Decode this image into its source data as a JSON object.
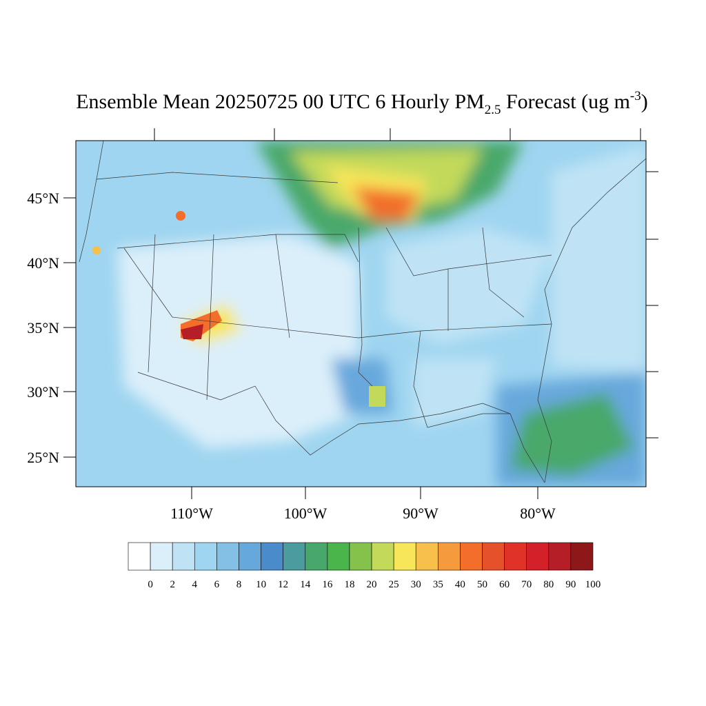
{
  "title": {
    "main": "Ensemble Mean 20250725 00 UTC 6 Hourly PM",
    "subscript": "2.5",
    "middle": " Forecast (ug m",
    "superscript": "-3",
    "end": ")"
  },
  "latitudes": [
    "45°N",
    "40°N",
    "35°N",
    "30°N",
    "25°N"
  ],
  "longitudes": [
    "110°W",
    "100°W",
    "90°W",
    "80°W"
  ],
  "legend": {
    "labels": [
      0,
      2,
      4,
      6,
      8,
      10,
      12,
      14,
      16,
      18,
      20,
      25,
      30,
      35,
      40,
      50,
      60,
      70,
      80,
      90,
      100
    ],
    "colors": [
      "#ffffff",
      "#dbeffa",
      "#bfe3f5",
      "#9fd5f0",
      "#84c0e5",
      "#67a8dc",
      "#4a8ccb",
      "#4a9c9e",
      "#48a86b",
      "#4ab54a",
      "#85c24c",
      "#c2d95a",
      "#f8e65a",
      "#f6c04a",
      "#f59a3d",
      "#f26e2a",
      "#e5512a",
      "#e03228",
      "#d42029",
      "#b61e27",
      "#8e1719"
    ]
  }
}
